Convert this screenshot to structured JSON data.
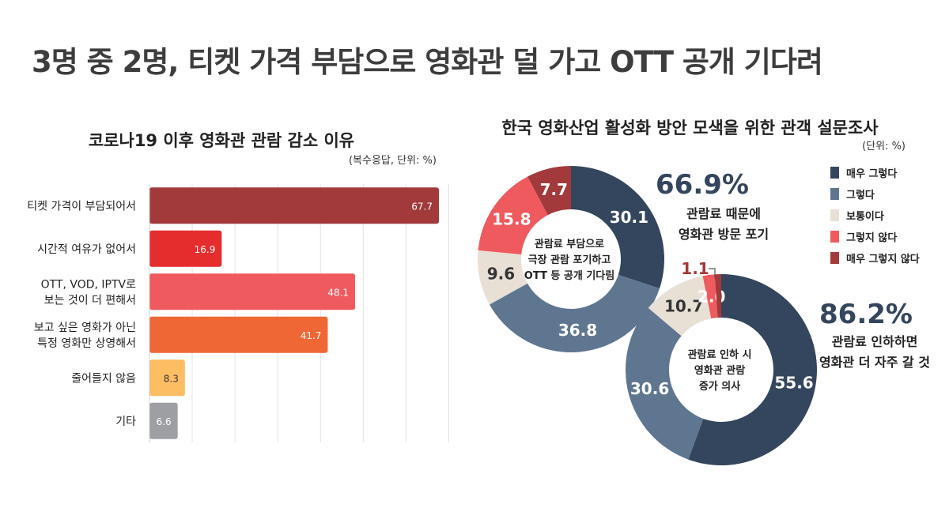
{
  "title": "3명 중 2명, 티켓 가격 부담으로 영화관 덜 가고 OTT 공개 기다려",
  "bar_section": {
    "title": "코로나19 이후 영화관 관람 감소 이유",
    "unit": "(복수응답, 단위: %)"
  },
  "donut_section": {
    "title": "한국 영화산업 활성화 방안 모색을 위한 관객 설문조사",
    "unit": "(단위: %)"
  },
  "chart_data": [
    {
      "type": "bar",
      "orientation": "horizontal",
      "title": "코로나19 이후 영화관 관람 감소 이유",
      "subtitle": "(복수응답, 단위: %)",
      "categories": [
        "티켓 가격이 부담되어서",
        "시간적 여유가 없어서",
        "OTT, VOD, IPTV로\n보는 것이 더 편해서",
        "보고 싶은 영화가 아닌\n특정 영화만 상영해서",
        "줄어들지 않음",
        "기타"
      ],
      "values": [
        67.7,
        16.9,
        48.1,
        41.7,
        8.3,
        6.6
      ],
      "value_labels": [
        "67.7",
        "16.9",
        "48.1",
        "41.7",
        "8.3",
        "6.6"
      ],
      "colors": [
        "#a23a3b",
        "#e52d2d",
        "#ef5a5e",
        "#f06736",
        "#fcbd63",
        "#9d9fa3"
      ],
      "xlim": [
        0,
        70
      ],
      "grid": true
    },
    {
      "type": "pie",
      "variant": "donut",
      "subtitle": "(단위: %)",
      "center_label": "관람료 부담으로\n극장 관람 포기하고\nOTT 등 공개 기다림",
      "categories": [
        "매우 그렇다",
        "그렇다",
        "보통이다",
        "그렇지 않다",
        "매우 그렇지 않다"
      ],
      "values": [
        30.1,
        36.8,
        9.6,
        15.8,
        7.7
      ],
      "labels": [
        "30.1",
        "36.8",
        "9.6",
        "15.8",
        "7.7"
      ],
      "colors": [
        "#34465d",
        "#5f7691",
        "#e8e0d5",
        "#ef5a5e",
        "#a23a3b"
      ],
      "callout_value": "66.9%",
      "callout_text": "관람료 때문에\n영화관 방문 포기"
    },
    {
      "type": "pie",
      "variant": "donut",
      "center_label": "관람료 인하 시\n영화관 관람\n증가 의사",
      "categories": [
        "매우 그렇다",
        "그렇다",
        "보통이다",
        "그렇지 않다",
        "매우 그렇지 않다"
      ],
      "values": [
        55.6,
        30.6,
        10.7,
        2.0,
        1.1
      ],
      "labels": [
        "55.6",
        "30.6",
        "10.7",
        "2.0",
        "1.1"
      ],
      "colors": [
        "#34465d",
        "#5f7691",
        "#e8e0d5",
        "#ef5a5e",
        "#a23a3b"
      ],
      "callout_value": "86.2%",
      "callout_text": "관람료 인하하면\n영화관 더 자주 갈 것"
    }
  ],
  "legend": [
    {
      "label": "매우 그렇다",
      "color": "#34465d"
    },
    {
      "label": "그렇다",
      "color": "#5f7691"
    },
    {
      "label": "보통이다",
      "color": "#e8e0d5"
    },
    {
      "label": "그렇지 않다",
      "color": "#ef5a5e"
    },
    {
      "label": "매우 그렇지 않다",
      "color": "#a23a3b"
    }
  ]
}
